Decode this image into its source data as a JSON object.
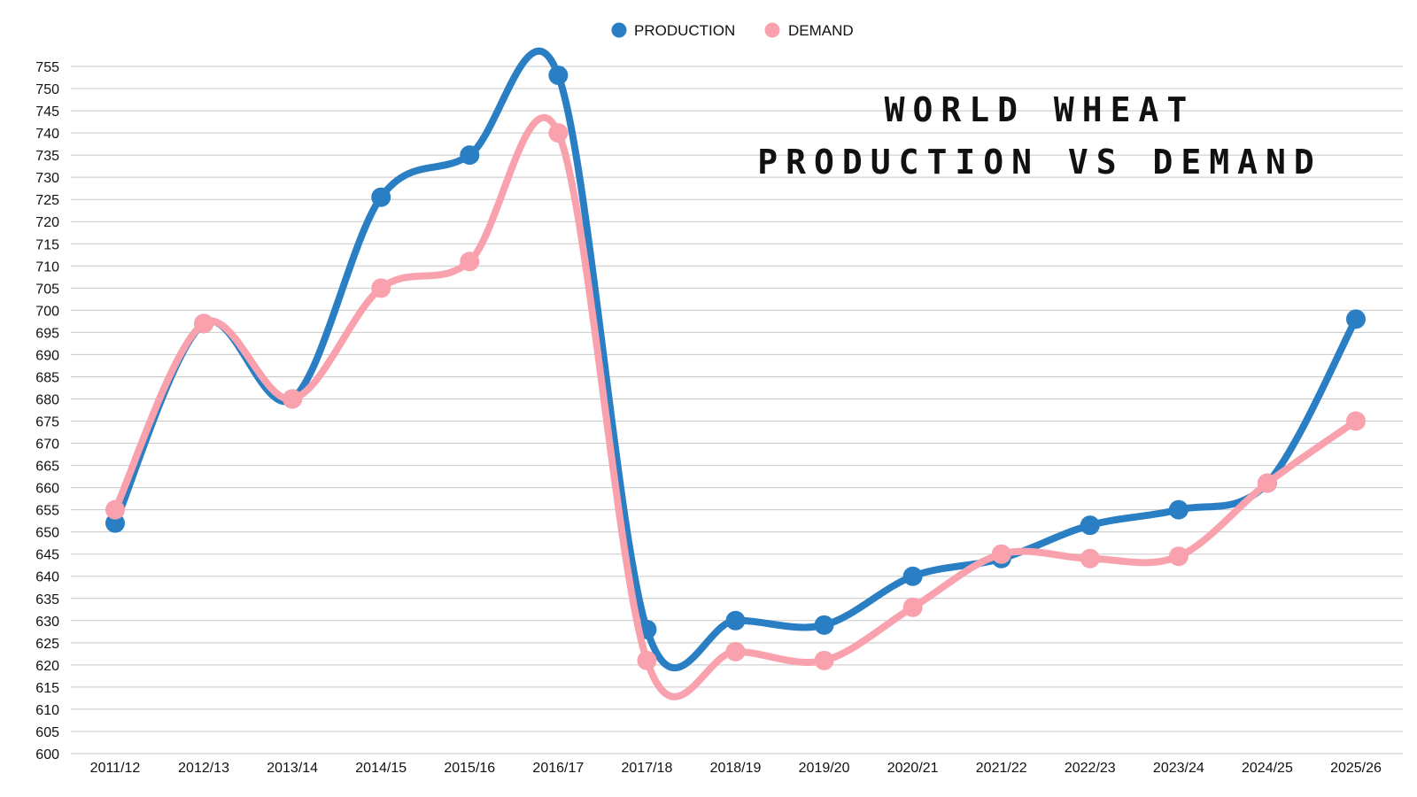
{
  "chart_data": {
    "type": "line",
    "title_lines": [
      "WORLD WHEAT",
      "PRODUCTION VS DEMAND"
    ],
    "categories": [
      "2011/12",
      "2012/13",
      "2013/14",
      "2014/15",
      "2015/16",
      "2016/17",
      "2017/18",
      "2018/19",
      "2019/20",
      "2020/21",
      "2021/22",
      "2022/23",
      "2023/24",
      "2024/25",
      "2025/26"
    ],
    "ylim": [
      600,
      755
    ],
    "ytick_step": 5,
    "yticks": [
      "600",
      "605",
      "610",
      "615",
      "620",
      "625",
      "630",
      "635",
      "640",
      "645",
      "650",
      "655",
      "660",
      "665",
      "670",
      "675",
      "680",
      "685",
      "690",
      "695",
      "700",
      "705",
      "710",
      "715",
      "720",
      "725",
      "730",
      "735",
      "740",
      "745",
      "750",
      "755"
    ],
    "grid": true,
    "legend_position": "top-center",
    "series": [
      {
        "name": "PRODUCTION",
        "color": "#2a7fc4",
        "values": [
          652,
          697,
          680,
          725.5,
          735,
          753,
          628,
          630,
          629,
          640,
          644,
          651.5,
          655,
          661,
          698
        ]
      },
      {
        "name": "DEMAND",
        "color": "#f9a2ae",
        "values": [
          655,
          697,
          680,
          705,
          711,
          740,
          621,
          623,
          621,
          633,
          645,
          644,
          644.5,
          661,
          675
        ]
      }
    ]
  }
}
